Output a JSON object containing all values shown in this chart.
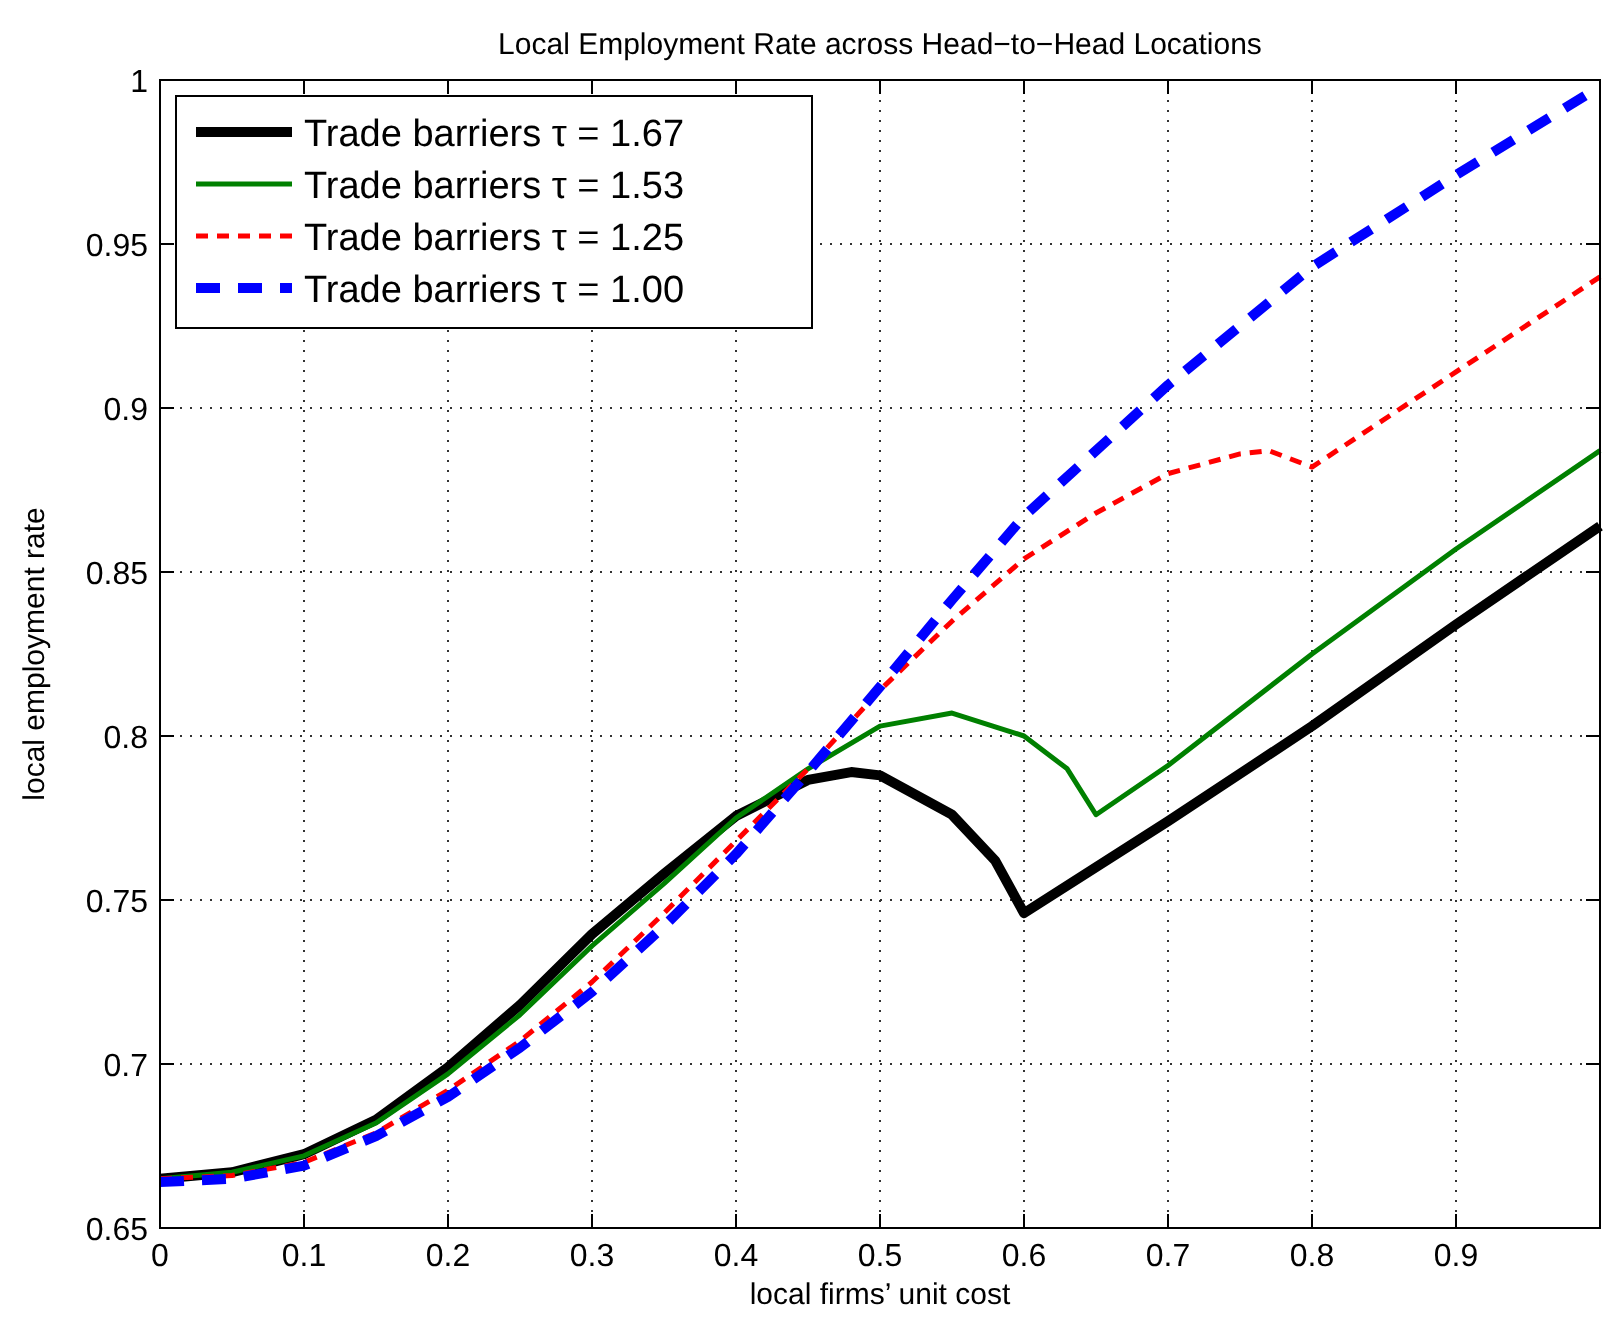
{
  "chart_data": {
    "type": "line",
    "title": "Local Employment Rate across Head−to−Head Locations",
    "xlabel": "local firms’ unit cost",
    "ylabel": "local employment rate",
    "xlim": [
      0,
      1
    ],
    "ylim": [
      0.65,
      1
    ],
    "xticks": [
      0,
      0.1,
      0.2,
      0.3,
      0.4,
      0.5,
      0.6,
      0.7,
      0.8,
      0.9
    ],
    "yticks": [
      0.65,
      0.7,
      0.75,
      0.8,
      0.85,
      0.9,
      0.95,
      1
    ],
    "grid": true,
    "legend": "top left",
    "series": [
      {
        "name": "Trade barriers τ = 1.67",
        "color": "#000000",
        "line_style": "solid",
        "x": [
          0,
          0.05,
          0.1,
          0.15,
          0.2,
          0.25,
          0.3,
          0.35,
          0.4,
          0.45,
          0.48,
          0.5,
          0.55,
          0.58,
          0.6,
          0.7,
          0.8,
          0.9,
          1
        ],
        "values": [
          0.665,
          0.667,
          0.6725,
          0.683,
          0.699,
          0.718,
          0.7396,
          0.758,
          0.7756,
          0.7866,
          0.789,
          0.788,
          0.776,
          0.762,
          0.746,
          0.774,
          0.803,
          0.834,
          0.864
        ]
      },
      {
        "name": "Trade barriers τ = 1.53",
        "color": "#008000",
        "line_style": "solid",
        "x": [
          0,
          0.05,
          0.1,
          0.15,
          0.2,
          0.25,
          0.3,
          0.35,
          0.4,
          0.45,
          0.5,
          0.55,
          0.6,
          0.63,
          0.65,
          0.7,
          0.8,
          0.9,
          1
        ],
        "values": [
          0.665,
          0.667,
          0.672,
          0.682,
          0.697,
          0.715,
          0.736,
          0.755,
          0.775,
          0.79,
          0.803,
          0.807,
          0.8,
          0.79,
          0.776,
          0.791,
          0.825,
          0.857,
          0.887
        ]
      },
      {
        "name": "Trade barriers τ = 1.25",
        "color": "#ff0000",
        "line_style": "dashed",
        "x": [
          0,
          0.05,
          0.1,
          0.15,
          0.2,
          0.25,
          0.3,
          0.35,
          0.4,
          0.45,
          0.5,
          0.55,
          0.6,
          0.65,
          0.7,
          0.75,
          0.77,
          0.8,
          0.9,
          1
        ],
        "values": [
          0.665,
          0.666,
          0.67,
          0.679,
          0.692,
          0.707,
          0.725,
          0.746,
          0.768,
          0.79,
          0.814,
          0.835,
          0.854,
          0.868,
          0.88,
          0.886,
          0.887,
          0.882,
          0.911,
          0.94
        ]
      },
      {
        "name": "Trade barriers τ = 1.00",
        "color": "#0000ff",
        "line_style": "dashed",
        "x": [
          0,
          0.05,
          0.1,
          0.15,
          0.2,
          0.25,
          0.3,
          0.35,
          0.4,
          0.45,
          0.5,
          0.55,
          0.6,
          0.7,
          0.8,
          0.9,
          1
        ],
        "values": [
          0.664,
          0.665,
          0.669,
          0.678,
          0.69,
          0.705,
          0.722,
          0.742,
          0.764,
          0.789,
          0.815,
          0.8415,
          0.867,
          0.907,
          0.943,
          0.971,
          0.998
        ]
      }
    ]
  }
}
